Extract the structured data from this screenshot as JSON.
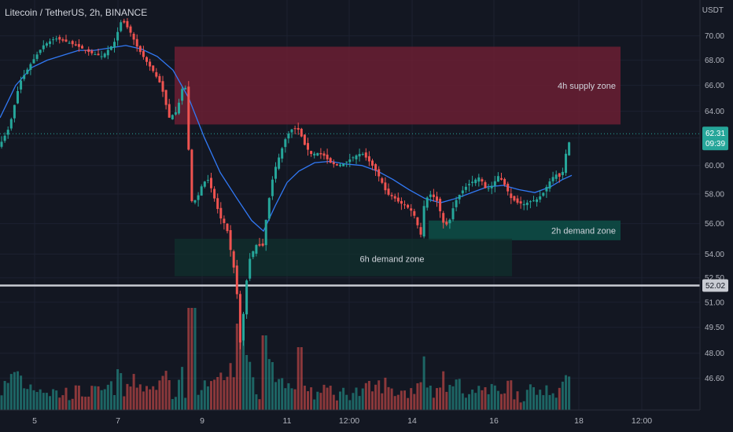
{
  "header": {
    "symbol_title": "Litecoin / TetherUS, 2h, BINANCE",
    "currency": "USDT"
  },
  "colors": {
    "background": "#131722",
    "up": "#26a69a",
    "down": "#ef5350",
    "ma": "#3179f5",
    "supply_zone": "#6b1f33",
    "demand_zone": "#0d4b45",
    "text": "#d1d4dc"
  },
  "zones": [
    {
      "label": "4h supply zone",
      "kind": "supply",
      "price_low": 63.0,
      "price_high": 69.1,
      "t_start": 222,
      "t_end": 789
    },
    {
      "label": "2h demand zone",
      "kind": "demand",
      "price_low": 54.9,
      "price_high": 56.2,
      "t_start": 545,
      "t_end": 789
    },
    {
      "label": "6h demand zone",
      "kind": "demand_faint",
      "price_low": 52.6,
      "price_high": 55.0,
      "t_start": 222,
      "t_end": 651
    }
  ],
  "price_badges": {
    "last_price": "62.31",
    "countdown": "09:39",
    "level": "52.02"
  },
  "chart_data": {
    "type": "candlestick",
    "title": "Litecoin / TetherUS, 2h, BINANCE",
    "ylabel": "USDT",
    "yscale": "log",
    "ylim": [
      45.5,
      72.5
    ],
    "y_ticks": [
      "70.00",
      "68.00",
      "66.00",
      "64.00",
      "62.00",
      "60.00",
      "58.00",
      "56.00",
      "54.00",
      "52.50",
      "51.00",
      "49.50",
      "48.00",
      "46.60"
    ],
    "x_ticks": [
      {
        "label": "5",
        "t": 44
      },
      {
        "label": "7",
        "t": 150
      },
      {
        "label": "9",
        "t": 257
      },
      {
        "label": "11",
        "t": 365
      },
      {
        "label": "12:00",
        "t": 444
      },
      {
        "label": "14",
        "t": 524
      },
      {
        "label": "16",
        "t": 628
      },
      {
        "label": "18",
        "t": 736
      },
      {
        "label": "12:00",
        "t": 816
      }
    ],
    "horizontal_level": 52.02,
    "last_price": 62.31,
    "price_path": [
      [
        0,
        61.5
      ],
      [
        12,
        62.8
      ],
      [
        25,
        66.2
      ],
      [
        40,
        67.8
      ],
      [
        55,
        69.2
      ],
      [
        70,
        69.8
      ],
      [
        85,
        69.5
      ],
      [
        100,
        69.1
      ],
      [
        115,
        68.6
      ],
      [
        130,
        68.3
      ],
      [
        145,
        69.4
      ],
      [
        155,
        71.4
      ],
      [
        165,
        70.4
      ],
      [
        175,
        69.0
      ],
      [
        185,
        68.0
      ],
      [
        195,
        67.1
      ],
      [
        205,
        66.0
      ],
      [
        215,
        63.5
      ],
      [
        225,
        64.0
      ],
      [
        235,
        66.6
      ],
      [
        243,
        57.5
      ],
      [
        250,
        57.6
      ],
      [
        258,
        58.8
      ],
      [
        265,
        59.0
      ],
      [
        272,
        57.8
      ],
      [
        280,
        56.4
      ],
      [
        288,
        55.8
      ],
      [
        294,
        54.0
      ],
      [
        300,
        52.4
      ],
      [
        306,
        48.2
      ],
      [
        312,
        51.8
      ],
      [
        318,
        53.8
      ],
      [
        326,
        54.6
      ],
      [
        334,
        54.5
      ],
      [
        340,
        57.0
      ],
      [
        348,
        59.5
      ],
      [
        356,
        60.8
      ],
      [
        364,
        62.1
      ],
      [
        372,
        62.7
      ],
      [
        380,
        62.6
      ],
      [
        388,
        61.4
      ],
      [
        396,
        60.8
      ],
      [
        404,
        60.9
      ],
      [
        412,
        60.7
      ],
      [
        420,
        60.2
      ],
      [
        428,
        60.0
      ],
      [
        436,
        60.1
      ],
      [
        444,
        60.4
      ],
      [
        452,
        60.7
      ],
      [
        460,
        60.9
      ],
      [
        468,
        60.4
      ],
      [
        476,
        59.8
      ],
      [
        484,
        59.0
      ],
      [
        492,
        58.0
      ],
      [
        500,
        57.8
      ],
      [
        508,
        57.4
      ],
      [
        516,
        57.2
      ],
      [
        524,
        56.8
      ],
      [
        530,
        56.2
      ],
      [
        534,
        54.8
      ],
      [
        540,
        57.6
      ],
      [
        548,
        58.0
      ],
      [
        556,
        57.5
      ],
      [
        564,
        56.0
      ],
      [
        570,
        55.9
      ],
      [
        578,
        57.4
      ],
      [
        586,
        58.1
      ],
      [
        594,
        58.6
      ],
      [
        602,
        58.9
      ],
      [
        610,
        59.2
      ],
      [
        618,
        58.3
      ],
      [
        626,
        58.6
      ],
      [
        634,
        59.3
      ],
      [
        642,
        58.6
      ],
      [
        650,
        57.7
      ],
      [
        658,
        57.4
      ],
      [
        666,
        57.3
      ],
      [
        674,
        57.5
      ],
      [
        682,
        57.6
      ],
      [
        690,
        58.0
      ],
      [
        698,
        58.8
      ],
      [
        706,
        59.4
      ],
      [
        714,
        59.1
      ],
      [
        720,
        61.0
      ],
      [
        727,
        62.31
      ]
    ],
    "ma_path": [
      [
        0,
        63.5
      ],
      [
        20,
        66.0
      ],
      [
        40,
        67.4
      ],
      [
        60,
        68.0
      ],
      [
        80,
        68.4
      ],
      [
        100,
        68.8
      ],
      [
        120,
        68.8
      ],
      [
        140,
        69.0
      ],
      [
        160,
        69.2
      ],
      [
        180,
        68.9
      ],
      [
        200,
        68.3
      ],
      [
        220,
        67.2
      ],
      [
        240,
        65.0
      ],
      [
        260,
        62.0
      ],
      [
        280,
        59.5
      ],
      [
        300,
        57.8
      ],
      [
        320,
        56.2
      ],
      [
        335,
        55.5
      ],
      [
        350,
        57.2
      ],
      [
        365,
        58.8
      ],
      [
        380,
        59.6
      ],
      [
        400,
        60.2
      ],
      [
        420,
        60.3
      ],
      [
        440,
        60.1
      ],
      [
        460,
        60.0
      ],
      [
        480,
        59.6
      ],
      [
        500,
        59.0
      ],
      [
        520,
        58.3
      ],
      [
        540,
        57.7
      ],
      [
        560,
        57.4
      ],
      [
        580,
        57.7
      ],
      [
        600,
        58.1
      ],
      [
        620,
        58.5
      ],
      [
        640,
        58.6
      ],
      [
        660,
        58.3
      ],
      [
        680,
        58.1
      ],
      [
        700,
        58.5
      ],
      [
        715,
        59.0
      ],
      [
        727,
        59.3
      ]
    ]
  }
}
